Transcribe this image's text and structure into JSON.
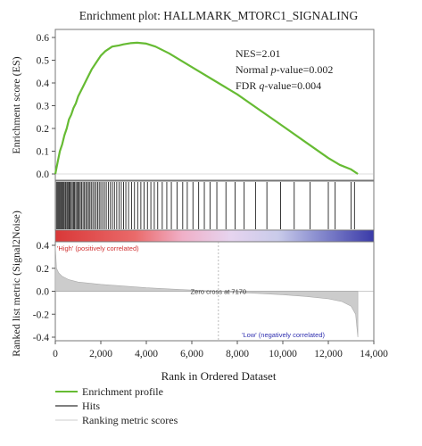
{
  "chart_data": {
    "type": "line",
    "title": "Enrichment plot: HALLMARK_MTORC1_SIGNALING",
    "xlabel": "Rank in Ordered Dataset",
    "xlim": [
      0,
      14000
    ],
    "x_ticks": [
      "0",
      "2,000",
      "4,000",
      "6,000",
      "8,000",
      "10,000",
      "12,000",
      "14,000"
    ],
    "es_panel": {
      "ylabel": "Enrichment score (ES)",
      "ylim": [
        0.0,
        0.6
      ],
      "y_ticks": [
        "0.0",
        "0.1",
        "0.2",
        "0.3",
        "0.4",
        "0.5",
        "0.6"
      ],
      "series": {
        "name": "Enrichment profile",
        "color": "#66bb33",
        "x": [
          0,
          100,
          200,
          300,
          400,
          500,
          600,
          700,
          800,
          900,
          1000,
          1200,
          1400,
          1600,
          1800,
          2000,
          2200,
          2500,
          2800,
          3000,
          3300,
          3600,
          4000,
          4400,
          5000,
          6000,
          7000,
          8000,
          9000,
          10000,
          11000,
          12000,
          12500,
          13000,
          13300
        ],
        "y": [
          0.0,
          0.05,
          0.1,
          0.13,
          0.17,
          0.2,
          0.24,
          0.26,
          0.29,
          0.31,
          0.34,
          0.38,
          0.42,
          0.46,
          0.49,
          0.52,
          0.54,
          0.56,
          0.565,
          0.57,
          0.575,
          0.577,
          0.573,
          0.56,
          0.53,
          0.47,
          0.41,
          0.35,
          0.28,
          0.21,
          0.14,
          0.07,
          0.04,
          0.02,
          0.0
        ]
      },
      "annotations": {
        "nes": "NES=2.01",
        "pvalue_prefix": "Normal ",
        "pvalue_italic": "p",
        "pvalue_suffix": "-value=0.002",
        "fdr_prefix": "FDR ",
        "fdr_italic": "q",
        "fdr_suffix": "-value=0.004"
      }
    },
    "hits_panel": {
      "name": "Hits",
      "color": "#222222",
      "positions": [
        50,
        90,
        130,
        170,
        210,
        260,
        300,
        340,
        380,
        430,
        470,
        520,
        560,
        610,
        650,
        700,
        750,
        800,
        840,
        900,
        950,
        1000,
        1050,
        1100,
        1160,
        1220,
        1280,
        1340,
        1400,
        1460,
        1520,
        1580,
        1650,
        1720,
        1790,
        1860,
        1930,
        2000,
        2080,
        2160,
        2240,
        2330,
        2420,
        2510,
        2600,
        2700,
        2800,
        2900,
        3000,
        3100,
        3220,
        3350,
        3480,
        3620,
        3760,
        3900,
        4050,
        4200,
        4350,
        4500,
        4700,
        4900,
        5100,
        5350,
        5600,
        5800,
        6050,
        6300,
        6550,
        6800,
        7100,
        7500,
        7900,
        8300,
        8800,
        9300,
        9900,
        10500,
        11200,
        12000,
        12300,
        13000,
        13150
      ]
    },
    "ranked_panel": {
      "ylabel": "Ranked list metric (Signal2Noise)",
      "ylim": [
        -0.4,
        0.4
      ],
      "y_ticks": [
        "0.4",
        "0.2",
        "0.0",
        "-0.2",
        "-0.4"
      ],
      "series": {
        "name": "Ranking metric scores",
        "color": "#cccccc",
        "x": [
          0,
          50,
          150,
          300,
          600,
          1000,
          2000,
          3000,
          4000,
          5000,
          6000,
          7170,
          8000,
          9000,
          10000,
          11000,
          12000,
          12600,
          13000,
          13200,
          13300
        ],
        "y": [
          0.4,
          0.2,
          0.16,
          0.13,
          0.1,
          0.08,
          0.06,
          0.045,
          0.03,
          0.02,
          0.01,
          0.0,
          -0.01,
          -0.02,
          -0.03,
          -0.045,
          -0.065,
          -0.09,
          -0.13,
          -0.2,
          -0.4
        ]
      },
      "zero_cross_label": "Zero cross at 7170",
      "zero_cross_x": 7170,
      "high_label": "'High' (positively correlated)",
      "low_label": "'Low' (negatively correlated)",
      "high_color": "#e05050",
      "low_color": "#5050c0"
    },
    "legend": {
      "placement": "bottom-left",
      "items": [
        {
          "label": "Enrichment profile",
          "color": "#66bb33"
        },
        {
          "label": "Hits",
          "color": "#555555"
        },
        {
          "label": "Ranking metric scores",
          "color": "#dddddd"
        }
      ]
    }
  }
}
